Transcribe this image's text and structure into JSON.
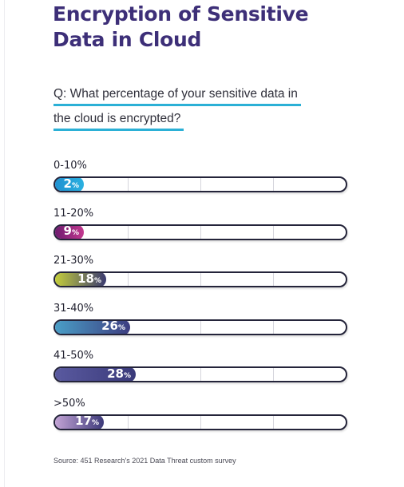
{
  "title_lines": [
    "Encryption of Sensitive",
    "Data in Cloud"
  ],
  "question_lines": [
    "Q: What percentage of your sensitive data in",
    "the cloud is encrypted?"
  ],
  "source": "Source: 451 Research's 2021 Data Threat custom survey",
  "colors": {
    "title": "#3d2f78",
    "underline": "#2bb0d6"
  },
  "chart_data": {
    "type": "bar",
    "orientation": "horizontal",
    "categories": [
      "0-10%",
      "11-20%",
      "21-30%",
      "31-40%",
      "41-50%",
      ">50%"
    ],
    "values": [
      2,
      9,
      18,
      26,
      28,
      17
    ],
    "value_suffix": "%",
    "grid": true,
    "bar_colors": [
      [
        "#1f8fd0",
        "#2ab0e0"
      ],
      [
        "#6a1a6e",
        "#c2388f"
      ],
      [
        "#c8d23a",
        "#3a3a70"
      ],
      [
        "#4aa0c8",
        "#3d3d80"
      ],
      [
        "#5a5aa0",
        "#3a3a7a"
      ],
      [
        "#c7a7d8",
        "#3d3a7a"
      ]
    ]
  }
}
